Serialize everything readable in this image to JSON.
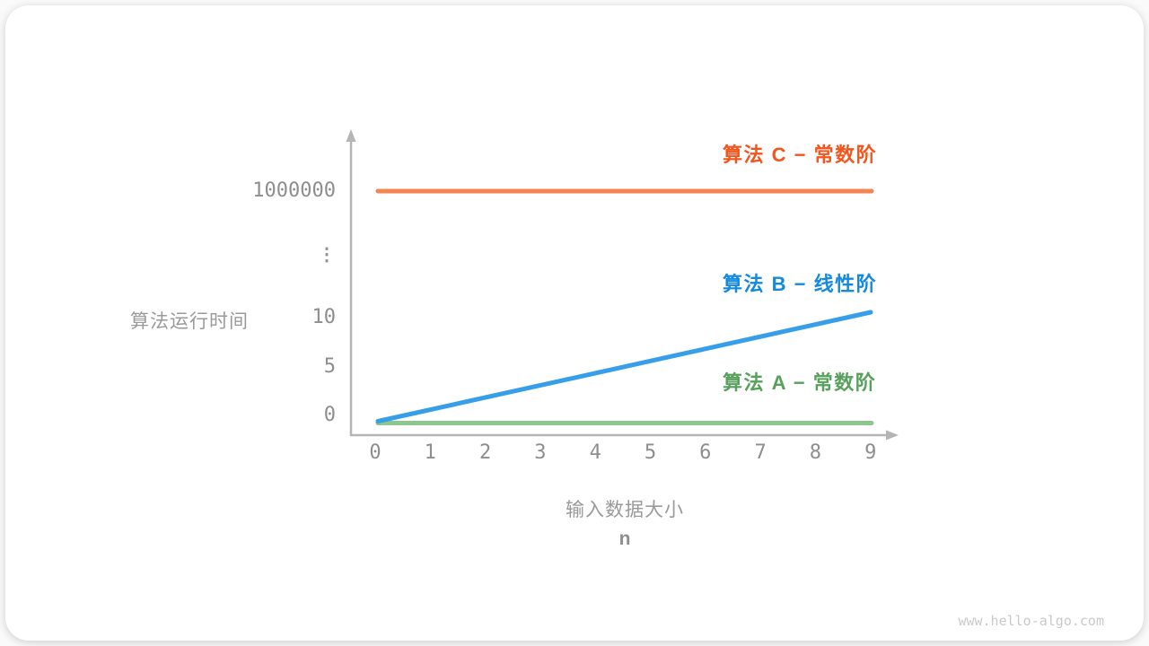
{
  "page": {
    "watermark": "www.hello-algo.com"
  },
  "chart_data": {
    "type": "line",
    "title": "",
    "xlabel": "输入数据大小",
    "xlabel_sub": "n",
    "ylabel": "算法运行时间",
    "x": [
      0,
      1,
      2,
      3,
      4,
      5,
      6,
      7,
      8,
      9
    ],
    "x_tick_labels": [
      "0",
      "1",
      "2",
      "3",
      "4",
      "5",
      "6",
      "7",
      "8",
      "9"
    ],
    "y_tick_labels": [
      "0",
      "5",
      "10",
      "⋮",
      "1000000"
    ],
    "y_axis_break": true,
    "grid": false,
    "legend_position": "inline-right",
    "axis_color": "#b5b5b5",
    "series": [
      {
        "name": "算法 A − 常数阶",
        "values": [
          1,
          1,
          1,
          1,
          1,
          1,
          1,
          1,
          1,
          1
        ],
        "label_color": "#57a15c",
        "line_color": "#8cc88e"
      },
      {
        "name": "算法 B − 线性阶",
        "values": [
          0,
          1,
          2,
          3,
          4,
          5,
          6,
          7,
          8,
          9
        ],
        "label_color": "#1389e0",
        "line_color": "#379ee9"
      },
      {
        "name": "算法 C − 常数阶",
        "values": [
          1000000,
          1000000,
          1000000,
          1000000,
          1000000,
          1000000,
          1000000,
          1000000,
          1000000,
          1000000
        ],
        "label_color": "#f4551c",
        "line_color": "#f58353"
      }
    ]
  }
}
